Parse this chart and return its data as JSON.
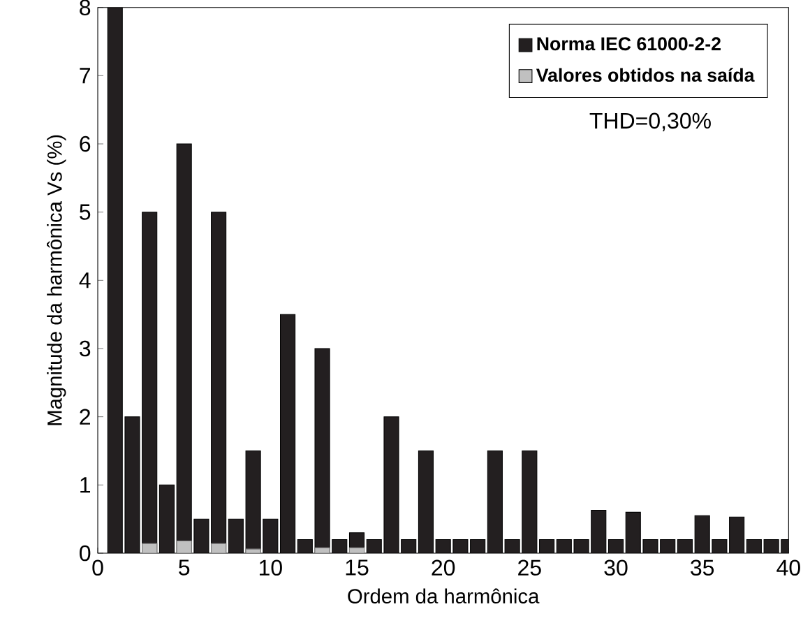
{
  "chart_data": {
    "type": "bar",
    "xlabel": "Ordem da harmônica",
    "ylabel": "Magnitude  da harmônica Vs (%)",
    "x": [
      1,
      2,
      3,
      4,
      5,
      6,
      7,
      8,
      9,
      10,
      11,
      12,
      13,
      14,
      15,
      16,
      17,
      18,
      19,
      20,
      21,
      22,
      23,
      24,
      25,
      26,
      27,
      28,
      29,
      30,
      31,
      32,
      33,
      34,
      35,
      36,
      37,
      38,
      39,
      40
    ],
    "series": [
      {
        "name": "Norma IEC 61000-2-2",
        "color": "#231f20",
        "values": [
          8,
          2,
          5,
          1,
          6,
          0.5,
          5,
          0.5,
          1.5,
          0.5,
          3.5,
          0.2,
          3,
          0.2,
          0.3,
          0.2,
          2,
          0.2,
          1.5,
          0.2,
          0.2,
          0.2,
          1.5,
          0.2,
          1.5,
          0.2,
          0.2,
          0.2,
          0.63,
          0.2,
          0.6,
          0.2,
          0.2,
          0.2,
          0.55,
          0.2,
          0.53,
          0.2,
          0.2,
          0.2
        ]
      },
      {
        "name": "Valores obtidos na saída",
        "color": "#c0c0c0",
        "values": [
          null,
          null,
          0.14,
          null,
          0.18,
          null,
          0.14,
          null,
          0.06,
          null,
          null,
          null,
          0.08,
          null,
          0.08,
          null,
          null,
          null,
          null,
          null,
          null,
          null,
          null,
          null,
          null,
          null,
          null,
          null,
          null,
          null,
          null,
          null,
          null,
          null,
          null,
          null,
          null,
          null,
          null,
          null
        ]
      }
    ],
    "annotations": [
      "THD=0,30%"
    ],
    "xlim": [
      0,
      40
    ],
    "xticks": [
      0,
      5,
      10,
      15,
      20,
      25,
      30,
      35,
      40
    ],
    "ylim": [
      0,
      8
    ],
    "yticks": [
      0,
      1,
      2,
      3,
      4,
      5,
      6,
      7,
      8
    ],
    "legend": "top right",
    "grid": false
  }
}
